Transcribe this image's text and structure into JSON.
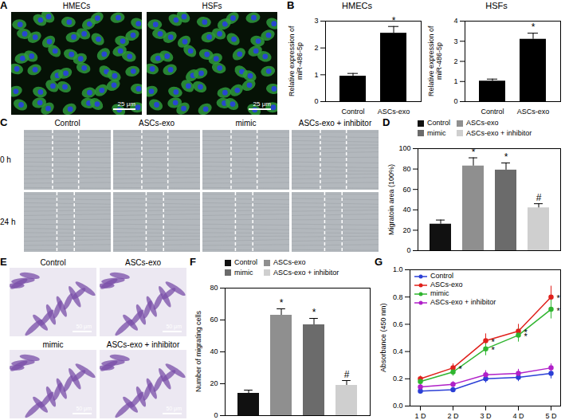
{
  "chart_data": [
    {
      "panel": "B",
      "type": "bar",
      "title": "HMECs",
      "categories": [
        "Control",
        "ASCs-exo"
      ],
      "values": [
        0.95,
        2.55
      ],
      "errors": [
        0.1,
        0.25
      ],
      "colors": [
        "#000000",
        "#000000"
      ],
      "y_label": "Relative expression of miR-486-5p",
      "ylim": [
        0,
        3
      ],
      "yticks": [
        0,
        1,
        2,
        3
      ],
      "annotations": [
        {
          "category": "ASCs-exo",
          "text": "*"
        }
      ]
    },
    {
      "type": "bar",
      "title": "HSFs",
      "categories": [
        "Control",
        "ASCs-exo"
      ],
      "values": [
        1.02,
        3.1
      ],
      "errors": [
        0.1,
        0.3
      ],
      "colors": [
        "#000000",
        "#000000"
      ],
      "y_label": "Relative expression of miR-486-5p",
      "ylim": [
        0,
        4
      ],
      "yticks": [
        0,
        1,
        2,
        3,
        4
      ],
      "annotations": [
        {
          "category": "ASCs-exo",
          "text": "*"
        }
      ]
    },
    {
      "panel": "D",
      "type": "bar",
      "categories": [
        "Control",
        "ASCs-exo",
        "mimic",
        "ASCs-exo + inhibitor"
      ],
      "values": [
        26,
        83,
        79,
        42
      ],
      "errors": [
        4,
        8,
        7,
        4
      ],
      "colors": [
        "#111111",
        "#8f8f8f",
        "#6b6b6b",
        "#cfcfcf"
      ],
      "y_label": "Migratoin area (100%)",
      "ylim": [
        0,
        100
      ],
      "yticks": [
        0,
        20,
        40,
        60,
        80,
        100
      ],
      "legend": "top-left",
      "tick_labels": "y",
      "annotations": [
        {
          "category": "ASCs-exo",
          "text": "*"
        },
        {
          "category": "mimic",
          "text": "*"
        },
        {
          "category": "ASCs-exo + inhibitor",
          "text": "#"
        }
      ]
    },
    {
      "panel": "F",
      "type": "bar",
      "categories": [
        "Control",
        "ASCs-exo",
        "mimic",
        "ASCs-exo + inhibitor"
      ],
      "values": [
        14,
        63,
        57,
        19
      ],
      "errors": [
        2,
        4,
        4,
        3
      ],
      "colors": [
        "#111111",
        "#8f8f8f",
        "#6b6b6b",
        "#cfcfcf"
      ],
      "y_label": "Number of migrating cells",
      "ylim": [
        0,
        80
      ],
      "yticks": [
        0,
        20,
        40,
        60,
        80
      ],
      "legend": "top-left",
      "tick_labels": "y",
      "annotations": [
        {
          "category": "ASCs-exo",
          "text": "*"
        },
        {
          "category": "mimic",
          "text": "*"
        },
        {
          "category": "ASCs-exo + inhibitor",
          "text": "#"
        }
      ]
    },
    {
      "panel": "G",
      "type": "line",
      "x": [
        "1 D",
        "2 D",
        "3 D",
        "4 D",
        "5 D"
      ],
      "series": [
        {
          "name": "Control",
          "color": "#2b3fd6",
          "values": [
            0.11,
            0.12,
            0.2,
            0.21,
            0.24
          ],
          "errors": [
            0.02,
            0.02,
            0.03,
            0.03,
            0.04
          ]
        },
        {
          "name": "ASCs-exo",
          "color": "#e0201b",
          "values": [
            0.2,
            0.28,
            0.48,
            0.55,
            0.8
          ],
          "errors": [
            0.02,
            0.03,
            0.05,
            0.05,
            0.08
          ]
        },
        {
          "name": "mimic",
          "color": "#2fb52f",
          "values": [
            0.18,
            0.25,
            0.42,
            0.52,
            0.71
          ],
          "errors": [
            0.02,
            0.03,
            0.05,
            0.05,
            0.07
          ]
        },
        {
          "name": "ASCs-exo + inhibitor",
          "color": "#b020c8",
          "values": [
            0.14,
            0.16,
            0.23,
            0.24,
            0.28
          ],
          "errors": [
            0.02,
            0.02,
            0.03,
            0.03,
            0.03
          ]
        }
      ],
      "y_label": "Absorbance (450 nm)",
      "ylim": [
        0,
        1
      ],
      "yticks": [
        {
          "value": 0,
          "label": "0.0"
        },
        {
          "value": 0.2,
          "label": "0.2"
        },
        {
          "value": 0.4,
          "label": "0.4"
        },
        {
          "value": 0.6,
          "label": "0.6"
        },
        {
          "value": 0.8,
          "label": "0.8"
        },
        {
          "value": 1,
          "label": "1.0"
        }
      ],
      "marker": "circle",
      "line_style": "solid",
      "legend": "top-left",
      "annotations": [
        {
          "series": "ASCs-exo",
          "x": "2 D",
          "text": "*"
        },
        {
          "series": "ASCs-exo",
          "x": "3 D",
          "text": "*"
        },
        {
          "series": "ASCs-exo",
          "x": "4 D",
          "text": "*"
        },
        {
          "series": "ASCs-exo",
          "x": "5 D",
          "text": "*"
        },
        {
          "series": "mimic",
          "x": "3 D",
          "text": "*"
        },
        {
          "series": "mimic",
          "x": "4 D",
          "text": "*"
        },
        {
          "series": "mimic",
          "x": "5 D",
          "text": "*"
        }
      ]
    }
  ],
  "images": [
    {
      "panel": "A",
      "labels": [
        "HMECs",
        "HSFs"
      ],
      "scale_bar": "25 μm"
    },
    {
      "panel": "C",
      "columns": [
        "Control",
        "ASCs-exo",
        "mimic",
        "ASCs-exo + inhibitor"
      ],
      "rows": [
        "0 h",
        "24 h"
      ]
    },
    {
      "panel": "E",
      "labels": [
        "Control",
        "ASCs-exo",
        "mimic",
        "ASCs-exo + inhibitor"
      ],
      "scale_bar": "50 μm"
    }
  ]
}
